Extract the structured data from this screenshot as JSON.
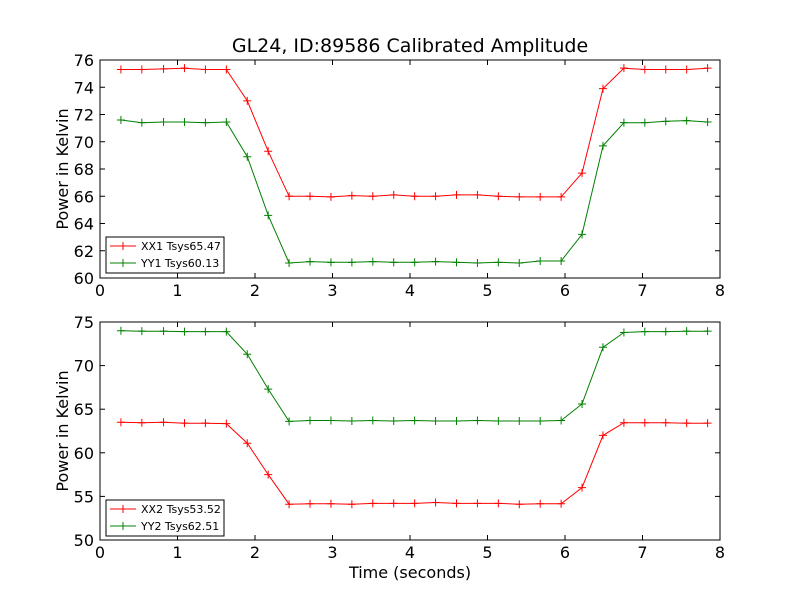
{
  "chart_data": [
    {
      "type": "line",
      "title": "GL24, ID:89586 Calibrated Amplitude",
      "xlabel": "",
      "ylabel": "Power in Kelvin",
      "xlim": [
        0,
        8
      ],
      "ylim": [
        60,
        76
      ],
      "xticks": [
        "0",
        "1",
        "2",
        "3",
        "4",
        "5",
        "6",
        "7",
        "8"
      ],
      "yticks": [
        "60",
        "62",
        "64",
        "66",
        "68",
        "70",
        "72",
        "74",
        "76"
      ],
      "legend_position": "lower-left",
      "x": [
        0.27,
        0.54,
        0.82,
        1.09,
        1.36,
        1.63,
        1.9,
        2.17,
        2.44,
        2.71,
        2.98,
        3.25,
        3.52,
        3.79,
        4.06,
        4.33,
        4.6,
        4.87,
        5.14,
        5.41,
        5.68,
        5.95,
        6.22,
        6.49,
        6.76,
        7.03,
        7.3,
        7.57,
        7.84
      ],
      "series": [
        {
          "name": "XX1 Tsys65.47",
          "color": "#ff0000",
          "values": [
            75.3,
            75.3,
            75.35,
            75.4,
            75.3,
            75.3,
            73.0,
            69.3,
            66.0,
            66.0,
            65.95,
            66.05,
            66.0,
            66.1,
            66.0,
            66.0,
            66.1,
            66.1,
            66.0,
            65.95,
            65.95,
            65.95,
            67.7,
            73.9,
            75.4,
            75.3,
            75.3,
            75.3,
            75.4
          ]
        },
        {
          "name": "YY1 Tsys60.13",
          "color": "#008000",
          "values": [
            71.6,
            71.4,
            71.45,
            71.45,
            71.4,
            71.45,
            68.9,
            64.6,
            61.1,
            61.2,
            61.15,
            61.15,
            61.2,
            61.15,
            61.15,
            61.2,
            61.15,
            61.1,
            61.15,
            61.1,
            61.25,
            61.25,
            63.2,
            69.7,
            71.4,
            71.4,
            71.5,
            71.55,
            71.45
          ]
        }
      ]
    },
    {
      "type": "line",
      "title": "",
      "xlabel": "Time (seconds)",
      "ylabel": "Power in Kelvin",
      "xlim": [
        0,
        8
      ],
      "ylim": [
        50,
        75
      ],
      "xticks": [
        "0",
        "1",
        "2",
        "3",
        "4",
        "5",
        "6",
        "7",
        "8"
      ],
      "yticks": [
        "50",
        "55",
        "60",
        "65",
        "70",
        "75"
      ],
      "legend_position": "lower-left",
      "x": [
        0.27,
        0.54,
        0.82,
        1.09,
        1.36,
        1.63,
        1.9,
        2.17,
        2.44,
        2.71,
        2.98,
        3.25,
        3.52,
        3.79,
        4.06,
        4.33,
        4.6,
        4.87,
        5.14,
        5.41,
        5.68,
        5.95,
        6.22,
        6.49,
        6.76,
        7.03,
        7.3,
        7.57,
        7.84
      ],
      "series": [
        {
          "name": "XX2 Tsys53.52",
          "color": "#ff0000",
          "values": [
            63.5,
            63.45,
            63.5,
            63.4,
            63.4,
            63.35,
            61.1,
            57.5,
            54.1,
            54.15,
            54.15,
            54.1,
            54.2,
            54.2,
            54.2,
            54.3,
            54.2,
            54.2,
            54.2,
            54.1,
            54.15,
            54.15,
            56.0,
            62.0,
            63.45,
            63.45,
            63.45,
            63.4,
            63.4
          ]
        },
        {
          "name": "YY2 Tsys62.51",
          "color": "#008000",
          "values": [
            74.0,
            73.95,
            73.95,
            73.9,
            73.9,
            73.9,
            71.3,
            67.3,
            63.6,
            63.7,
            63.7,
            63.65,
            63.7,
            63.65,
            63.7,
            63.65,
            63.65,
            63.7,
            63.65,
            63.65,
            63.65,
            63.7,
            65.6,
            72.1,
            73.8,
            73.9,
            73.9,
            73.95,
            73.95
          ]
        }
      ]
    }
  ]
}
